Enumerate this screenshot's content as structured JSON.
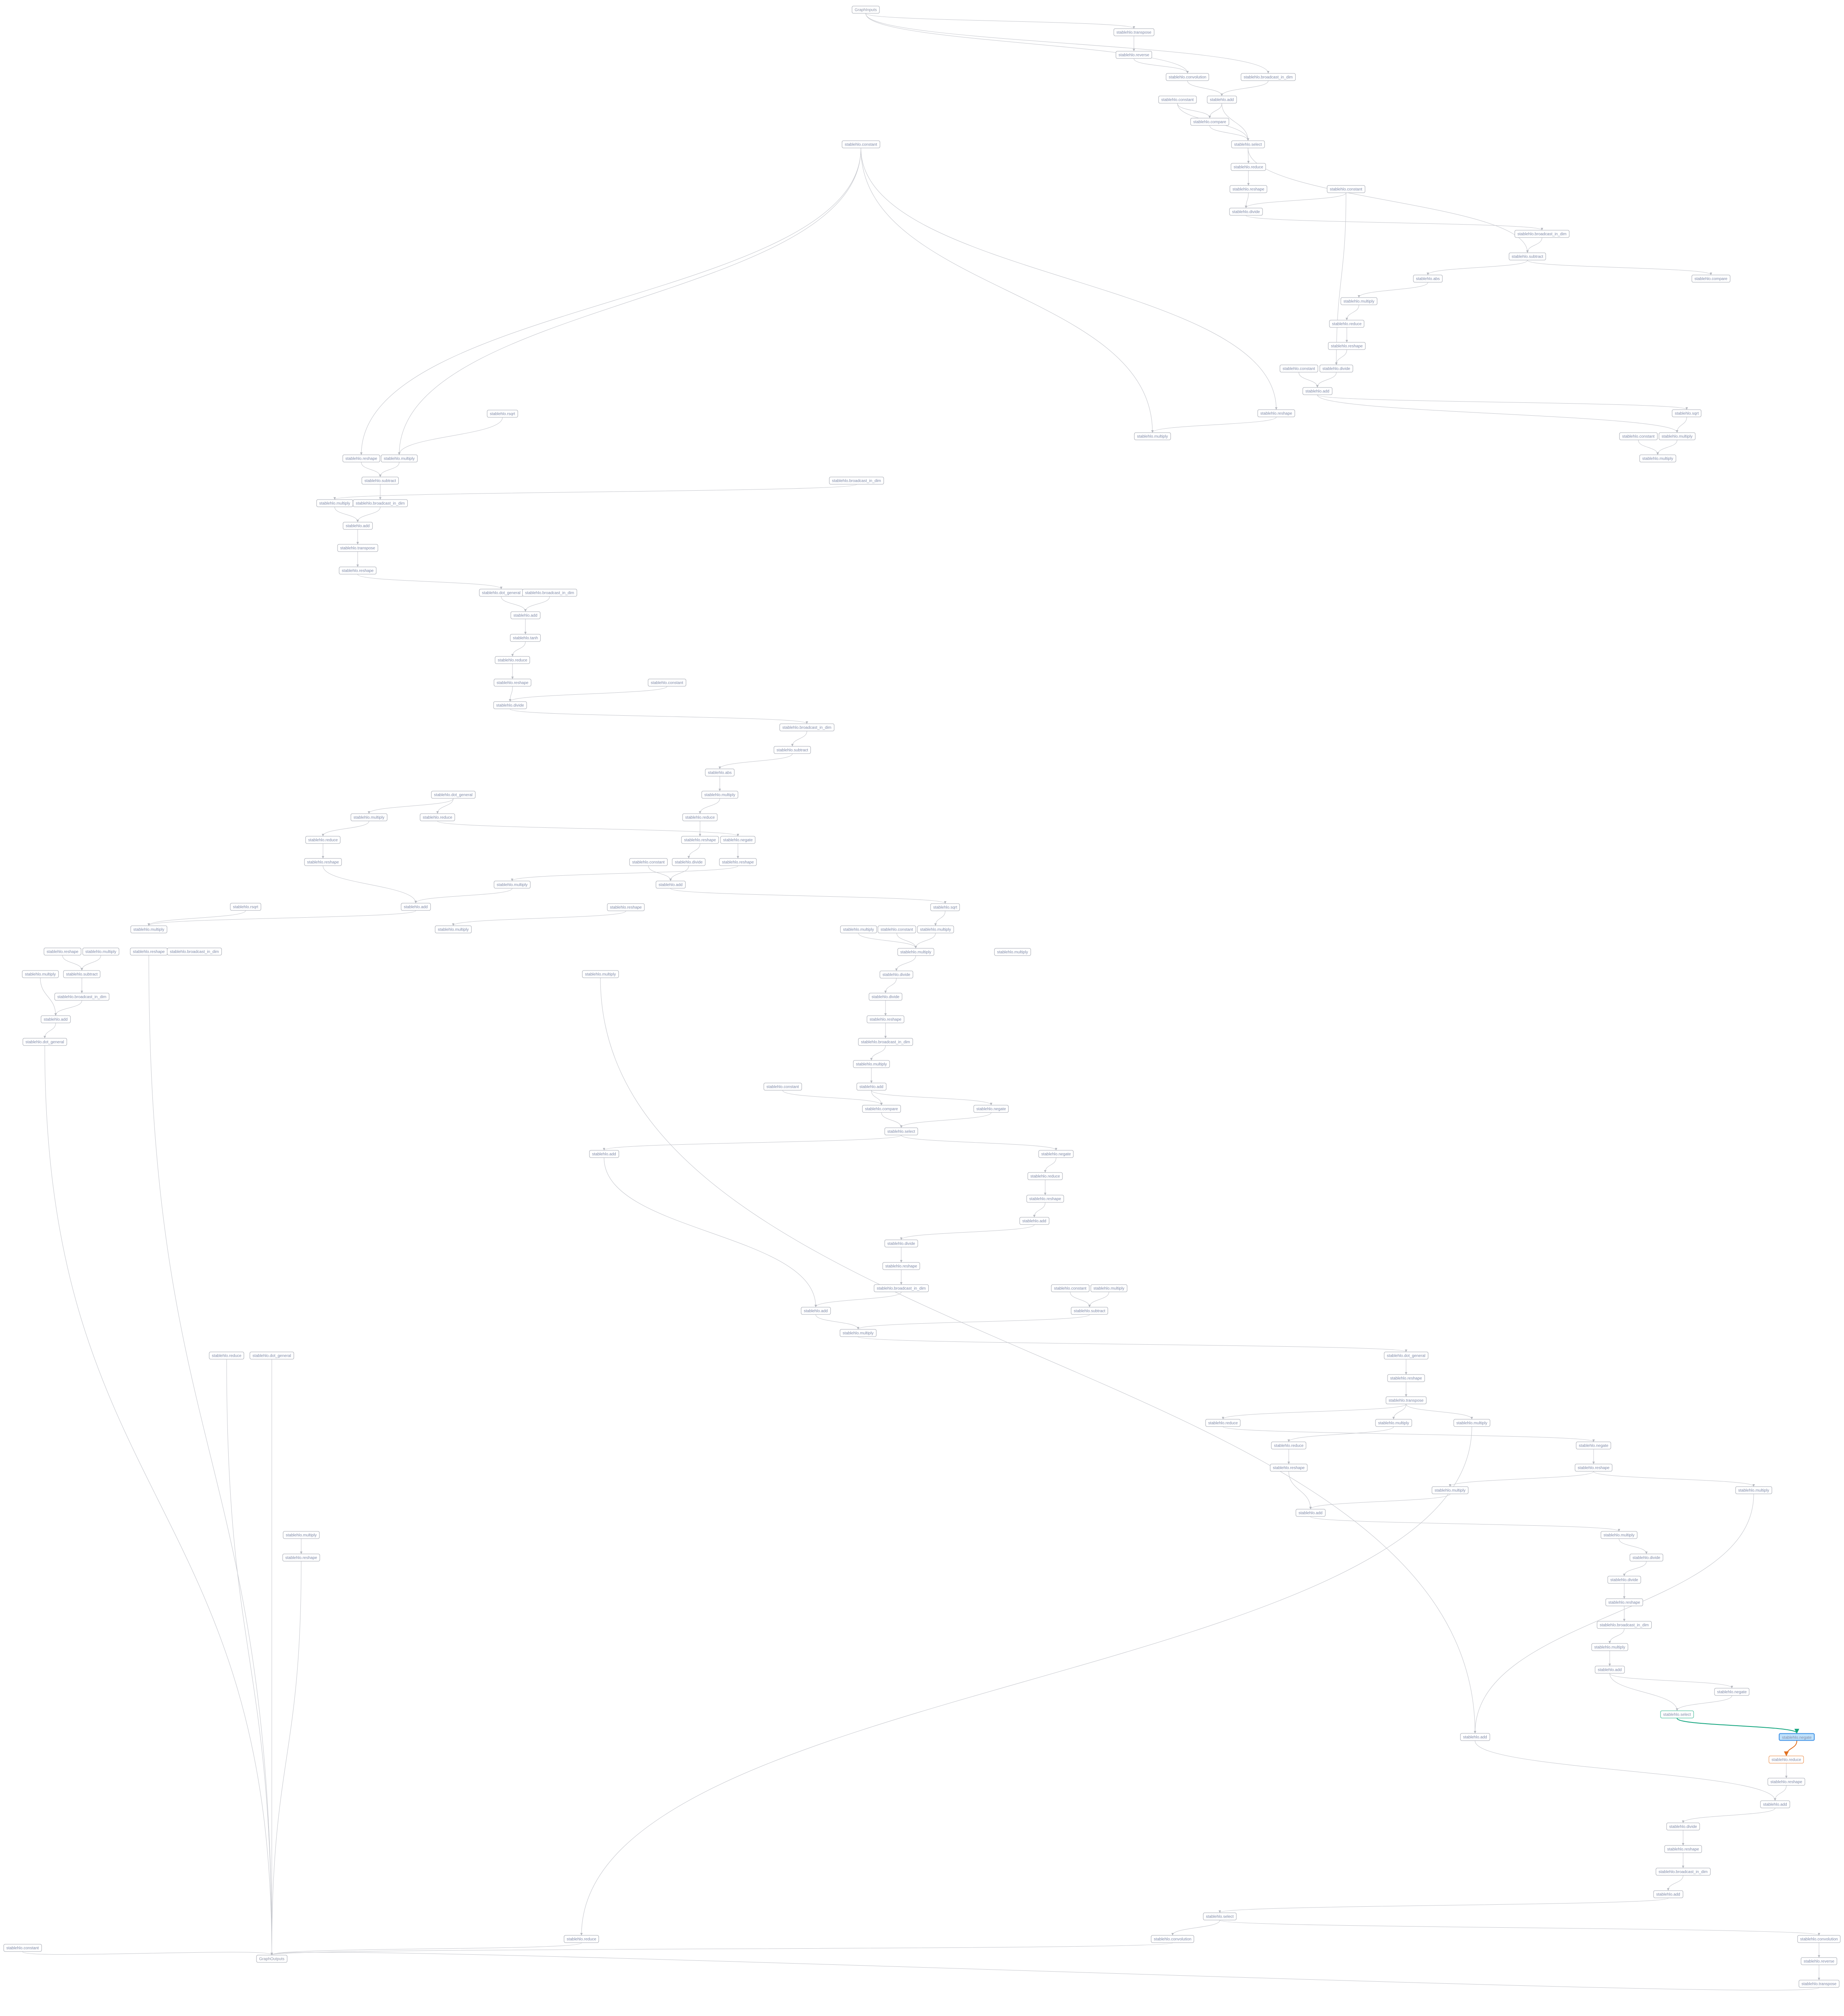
{
  "graph": {
    "nodes": [
      "GraphInputs",
      "stablehlo.transpose",
      "stablehlo.reverse",
      "stablehlo.convolution",
      "stablehlo.broadcast_in_dim",
      "stablehlo.constant",
      "stablehlo.add",
      "stablehlo.compare",
      "stablehlo.select",
      "stablehlo.constant",
      "stablehlo.reduce",
      "stablehlo.reshape",
      "stablehlo.constant",
      "stablehlo.divide",
      "stablehlo.broadcast_in_dim",
      "stablehlo.subtract",
      "stablehlo.abs",
      "stablehlo.compare",
      "stablehlo.multiply",
      "stablehlo.reduce",
      "stablehlo.reshape",
      "stablehlo.constant",
      "stablehlo.divide",
      "stablehlo.add",
      "stablehlo.reshape",
      "stablehlo.sqrt",
      "stablehlo.multiply",
      "stablehlo.constant",
      "stablehlo.multiply",
      "stablehlo.multiply",
      "stablehlo.rsqrt",
      "stablehlo.reshape",
      "stablehlo.multiply",
      "stablehlo.subtract",
      "stablehlo.broadcast_in_dim",
      "stablehlo.multiply",
      "stablehlo.broadcast_in_dim",
      "stablehlo.add",
      "stablehlo.transpose",
      "stablehlo.reshape",
      "stablehlo.dot_general",
      "stablehlo.broadcast_in_dim",
      "stablehlo.add",
      "stablehlo.tanh",
      "stablehlo.reduce",
      "stablehlo.reshape",
      "stablehlo.constant",
      "stablehlo.divide",
      "stablehlo.broadcast_in_dim",
      "stablehlo.subtract",
      "stablehlo.abs",
      "stablehlo.multiply",
      "stablehlo.dot_general",
      "stablehlo.reduce",
      "stablehlo.multiply",
      "stablehlo.reduce",
      "stablehlo.reduce",
      "stablehlo.reshape",
      "stablehlo.negate",
      "stablehlo.reshape",
      "stablehlo.constant",
      "stablehlo.divide",
      "stablehlo.reshape",
      "stablehlo.multiply",
      "stablehlo.add",
      "stablehlo.rsqrt",
      "stablehlo.add",
      "stablehlo.reshape",
      "stablehlo.sqrt",
      "stablehlo.multiply",
      "stablehlo.multiply",
      "stablehlo.multiply",
      "stablehlo.constant",
      "stablehlo.multiply",
      "stablehlo.reshape",
      "stablehlo.multiply",
      "stablehlo.reshape",
      "stablehlo.broadcast_in_dim",
      "stablehlo.multiply",
      "stablehlo.multiply",
      "stablehlo.multiply",
      "stablehlo.subtract",
      "stablehlo.multiply",
      "stablehlo.divide",
      "stablehlo.broadcast_in_dim",
      "stablehlo.divide",
      "stablehlo.add",
      "stablehlo.reshape",
      "stablehlo.dot_general",
      "stablehlo.broadcast_in_dim",
      "stablehlo.multiply",
      "stablehlo.constant",
      "stablehlo.add",
      "stablehlo.compare",
      "stablehlo.negate",
      "stablehlo.select",
      "stablehlo.add",
      "stablehlo.negate",
      "stablehlo.reduce",
      "stablehlo.reshape",
      "stablehlo.add",
      "stablehlo.divide",
      "stablehlo.reshape",
      "stablehlo.broadcast_in_dim",
      "stablehlo.constant",
      "stablehlo.multiply",
      "stablehlo.add",
      "stablehlo.subtract",
      "stablehlo.multiply",
      "stablehlo.dot_general",
      "stablehlo.reduce",
      "stablehlo.dot_general",
      "stablehlo.reshape",
      "stablehlo.transpose",
      "stablehlo.reduce",
      "stablehlo.multiply",
      "stablehlo.multiply",
      "stablehlo.reduce",
      "stablehlo.negate",
      "stablehlo.reshape",
      "stablehlo.reshape",
      "stablehlo.multiply",
      "stablehlo.multiply",
      "stablehlo.add",
      "stablehlo.multiply",
      "stablehlo.divide",
      "stablehlo.divide",
      "stablehlo.reshape",
      "stablehlo.broadcast_in_dim",
      "stablehlo.multiply",
      "stablehlo.add",
      "stablehlo.negate",
      "stablehlo.select",
      "stablehlo.add",
      "stablehlo.negate",
      "stablehlo.reduce",
      "stablehlo.reshape",
      "stablehlo.add",
      "stablehlo.divide",
      "stablehlo.reshape",
      "stablehlo.broadcast_in_dim",
      "stablehlo.add",
      "stablehlo.select",
      "stablehlo.convolution",
      "stablehlo.convolution",
      "stablehlo.reduce",
      "stablehlo.reverse",
      "stablehlo.transpose",
      "stablehlo.constant",
      "GraphOutputs",
      "stablehlo.multiply",
      "stablehlo.reshape"
    ],
    "edges": [
      [
        0,
        1
      ],
      [
        1,
        2
      ],
      [
        2,
        3
      ],
      [
        0,
        3
      ],
      [
        0,
        4
      ],
      [
        3,
        6
      ],
      [
        4,
        6
      ],
      [
        5,
        7
      ],
      [
        6,
        7
      ],
      [
        7,
        8
      ],
      [
        6,
        8
      ],
      [
        5,
        8
      ],
      [
        8,
        10
      ],
      [
        10,
        11
      ],
      [
        11,
        13
      ],
      [
        12,
        13
      ],
      [
        13,
        14
      ],
      [
        14,
        15
      ],
      [
        8,
        15
      ],
      [
        15,
        16
      ],
      [
        15,
        17
      ],
      [
        16,
        18
      ],
      [
        18,
        19
      ],
      [
        19,
        20
      ],
      [
        20,
        22
      ],
      [
        12,
        22
      ],
      [
        21,
        23
      ],
      [
        22,
        23
      ],
      [
        23,
        25
      ],
      [
        23,
        28
      ],
      [
        25,
        28
      ],
      [
        27,
        29
      ],
      [
        28,
        29
      ],
      [
        24,
        26
      ],
      [
        9,
        26
      ],
      [
        9,
        24
      ],
      [
        9,
        31
      ],
      [
        9,
        32
      ],
      [
        30,
        32
      ],
      [
        31,
        33
      ],
      [
        32,
        33
      ],
      [
        33,
        36
      ],
      [
        34,
        35
      ],
      [
        35,
        37
      ],
      [
        36,
        37
      ],
      [
        37,
        38
      ],
      [
        38,
        39
      ],
      [
        39,
        40
      ],
      [
        40,
        42
      ],
      [
        41,
        42
      ],
      [
        42,
        43
      ],
      [
        43,
        44
      ],
      [
        44,
        45
      ],
      [
        45,
        47
      ],
      [
        46,
        47
      ],
      [
        47,
        48
      ],
      [
        48,
        49
      ],
      [
        49,
        50
      ],
      [
        50,
        51
      ],
      [
        51,
        55
      ],
      [
        55,
        57
      ],
      [
        57,
        61
      ],
      [
        60,
        64
      ],
      [
        61,
        64
      ],
      [
        53,
        58
      ],
      [
        58,
        62
      ],
      [
        52,
        53
      ],
      [
        52,
        54
      ],
      [
        54,
        56
      ],
      [
        56,
        59
      ],
      [
        59,
        66
      ],
      [
        63,
        66
      ],
      [
        62,
        63
      ],
      [
        65,
        69
      ],
      [
        66,
        69
      ],
      [
        67,
        70
      ],
      [
        64,
        68
      ],
      [
        68,
        73
      ],
      [
        71,
        78
      ],
      [
        72,
        78
      ],
      [
        73,
        78
      ],
      [
        74,
        81
      ],
      [
        75,
        81
      ],
      [
        81,
        84
      ],
      [
        80,
        86
      ],
      [
        84,
        86
      ],
      [
        86,
        88
      ],
      [
        78,
        83
      ],
      [
        83,
        85
      ],
      [
        85,
        87
      ],
      [
        87,
        89
      ],
      [
        89,
        90
      ],
      [
        90,
        92
      ],
      [
        91,
        93
      ],
      [
        92,
        93
      ],
      [
        92,
        94
      ],
      [
        93,
        95
      ],
      [
        94,
        95
      ],
      [
        95,
        96
      ],
      [
        95,
        97
      ],
      [
        97,
        98
      ],
      [
        98,
        99
      ],
      [
        99,
        100
      ],
      [
        100,
        101
      ],
      [
        101,
        102
      ],
      [
        102,
        103
      ],
      [
        103,
        106
      ],
      [
        96,
        106
      ],
      [
        104,
        107
      ],
      [
        105,
        107
      ],
      [
        106,
        108
      ],
      [
        107,
        108
      ],
      [
        108,
        109
      ],
      [
        109,
        112
      ],
      [
        112,
        113
      ],
      [
        113,
        114
      ],
      [
        113,
        115
      ],
      [
        113,
        116
      ],
      [
        115,
        117
      ],
      [
        117,
        119
      ],
      [
        119,
        123
      ],
      [
        121,
        123
      ],
      [
        114,
        118
      ],
      [
        118,
        120
      ],
      [
        120,
        121
      ],
      [
        120,
        122
      ],
      [
        123,
        124
      ],
      [
        124,
        125
      ],
      [
        125,
        126
      ],
      [
        126,
        127
      ],
      [
        127,
        128
      ],
      [
        128,
        129
      ],
      [
        129,
        130
      ],
      [
        130,
        131
      ],
      [
        130,
        132
      ],
      [
        131,
        132
      ],
      [
        132,
        134
      ],
      [
        134,
        135
      ],
      [
        135,
        136
      ],
      [
        136,
        137
      ],
      [
        133,
        137
      ],
      [
        137,
        138
      ],
      [
        138,
        139
      ],
      [
        139,
        140
      ],
      [
        140,
        141
      ],
      [
        141,
        142
      ],
      [
        142,
        143
      ],
      [
        142,
        144
      ],
      [
        144,
        146
      ],
      [
        146,
        147
      ],
      [
        147,
        149
      ],
      [
        143,
        149
      ],
      [
        148,
        149
      ],
      [
        145,
        149
      ],
      [
        110,
        149
      ],
      [
        111,
        149
      ],
      [
        150,
        151
      ],
      [
        151,
        149
      ],
      [
        88,
        149
      ],
      [
        76,
        149
      ],
      [
        82,
        133
      ],
      [
        116,
        145
      ],
      [
        122,
        133
      ]
    ],
    "selected_node": 134,
    "selected_input_node": 132,
    "selected_output_node": 135
  },
  "colors": {
    "node_text": "#7f8aa8",
    "node_border": "#a3a7b0",
    "edge": "#c4c6cc",
    "selected_fill": "#bfe1fb",
    "selected_border": "#3b8fe6",
    "input_highlight": "#13a57e",
    "output_highlight": "#e07020"
  }
}
